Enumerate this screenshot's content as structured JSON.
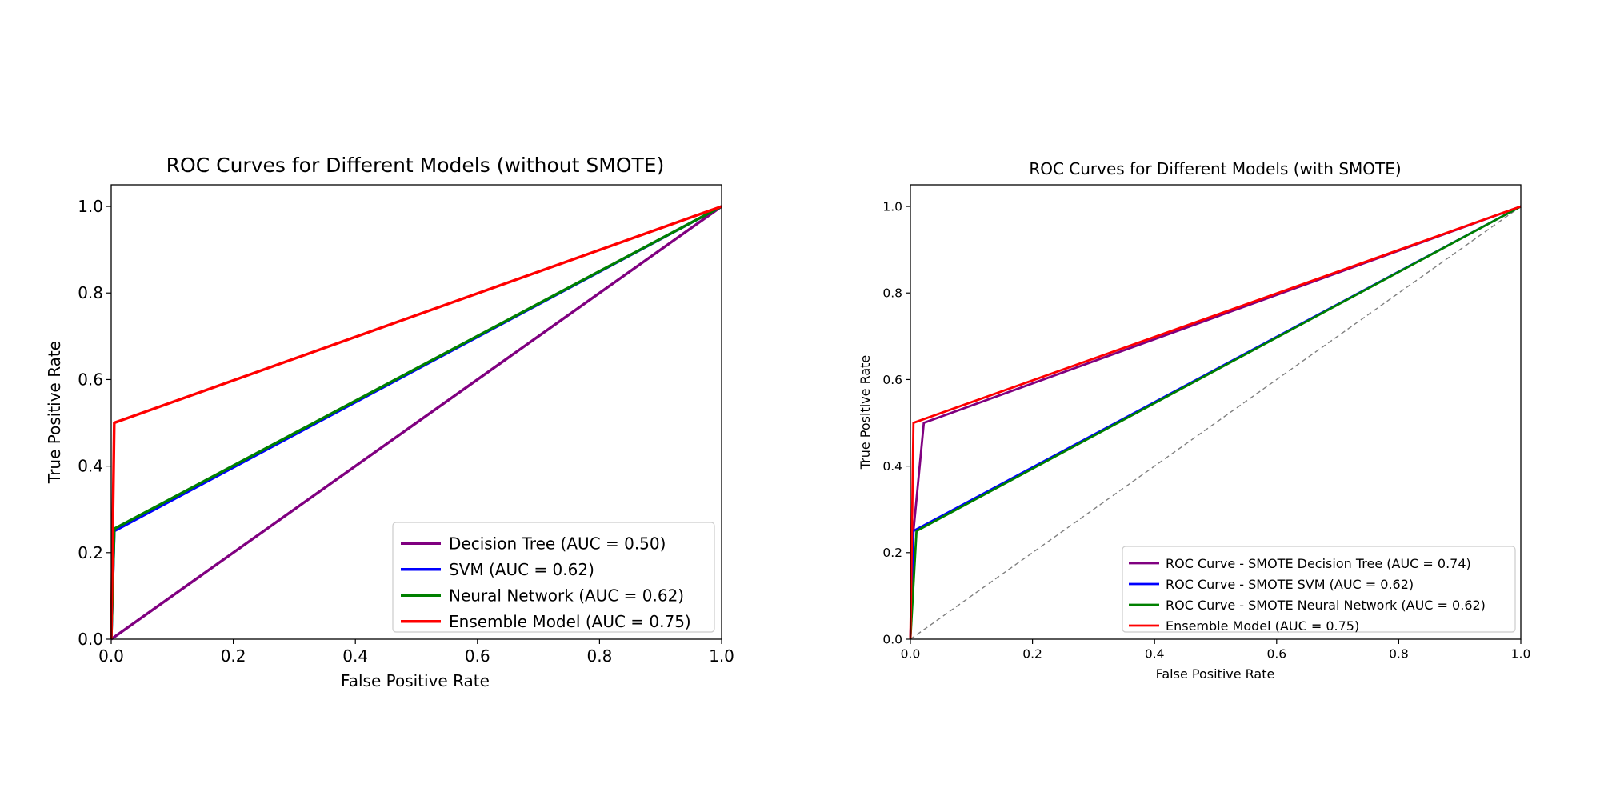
{
  "chart_data": [
    {
      "type": "line",
      "title": "ROC Curves for Different Models (without SMOTE)",
      "xlabel": "False Positive Rate",
      "ylabel": "True Positive Rate",
      "xlim": [
        0,
        1
      ],
      "ylim": [
        0,
        1.05
      ],
      "xticks": [
        0.0,
        0.2,
        0.4,
        0.6,
        0.8,
        1.0
      ],
      "yticks": [
        0.0,
        0.2,
        0.4,
        0.6,
        0.8,
        1.0
      ],
      "xtick_labels": [
        "0.0",
        "0.2",
        "0.4",
        "0.6",
        "0.8",
        "1.0"
      ],
      "ytick_labels": [
        "0.0",
        "0.2",
        "0.4",
        "0.6",
        "0.8",
        "1.0"
      ],
      "grid": false,
      "legend_position": "lower-right",
      "diagonal": {
        "show": true,
        "x": [
          0,
          1
        ],
        "y": [
          0,
          1
        ],
        "color": "#808080",
        "style": "dashed"
      },
      "series": [
        {
          "name": "Decision Tree (AUC = 0.50)",
          "color": "#800080",
          "x": [
            0.0,
            1.0
          ],
          "y": [
            0.0,
            1.0
          ]
        },
        {
          "name": "SVM (AUC = 0.62)",
          "color": "#0000ff",
          "x": [
            0.0,
            0.005,
            1.0
          ],
          "y": [
            0.0,
            0.25,
            1.0
          ]
        },
        {
          "name": "Neural Network (AUC = 0.62)",
          "color": "#008000",
          "x": [
            0.0,
            0.005,
            1.0
          ],
          "y": [
            0.0,
            0.255,
            1.0
          ]
        },
        {
          "name": "Ensemble Model (AUC = 0.75)",
          "color": "#ff0000",
          "x": [
            0.0,
            0.005,
            1.0
          ],
          "y": [
            0.0,
            0.5,
            1.0
          ]
        }
      ]
    },
    {
      "type": "line",
      "title": "ROC Curves for Different Models (with SMOTE)",
      "xlabel": "False Positive Rate",
      "ylabel": "True Positive Rate",
      "xlim": [
        0,
        1
      ],
      "ylim": [
        0,
        1.05
      ],
      "xticks": [
        0.0,
        0.2,
        0.4,
        0.6,
        0.8,
        1.0
      ],
      "yticks": [
        0.0,
        0.2,
        0.4,
        0.6,
        0.8,
        1.0
      ],
      "xtick_labels": [
        "0.0",
        "0.2",
        "0.4",
        "0.6",
        "0.8",
        "1.0"
      ],
      "ytick_labels": [
        "0.0",
        "0.2",
        "0.4",
        "0.6",
        "0.8",
        "1.0"
      ],
      "grid": false,
      "legend_position": "lower-right",
      "diagonal": {
        "show": true,
        "x": [
          0,
          1
        ],
        "y": [
          0,
          1
        ],
        "color": "#808080",
        "style": "dashed"
      },
      "series": [
        {
          "name": "ROC Curve - SMOTE Decision Tree (AUC = 0.74)",
          "color": "#800080",
          "x": [
            0.0,
            0.005,
            0.022,
            1.0
          ],
          "y": [
            0.0,
            0.25,
            0.5,
            1.0
          ]
        },
        {
          "name": "ROC Curve - SMOTE SVM (AUC = 0.62)",
          "color": "#0000ff",
          "x": [
            0.0,
            0.005,
            1.0
          ],
          "y": [
            0.0,
            0.25,
            1.0
          ]
        },
        {
          "name": "ROC Curve - SMOTE Neural Network (AUC = 0.62)",
          "color": "#008000",
          "x": [
            0.0,
            0.01,
            1.0
          ],
          "y": [
            0.0,
            0.25,
            1.0
          ]
        },
        {
          "name": "Ensemble Model (AUC = 0.75)",
          "color": "#ff0000",
          "x": [
            0.0,
            0.005,
            1.0
          ],
          "y": [
            0.0,
            0.5,
            1.0
          ]
        }
      ]
    }
  ]
}
